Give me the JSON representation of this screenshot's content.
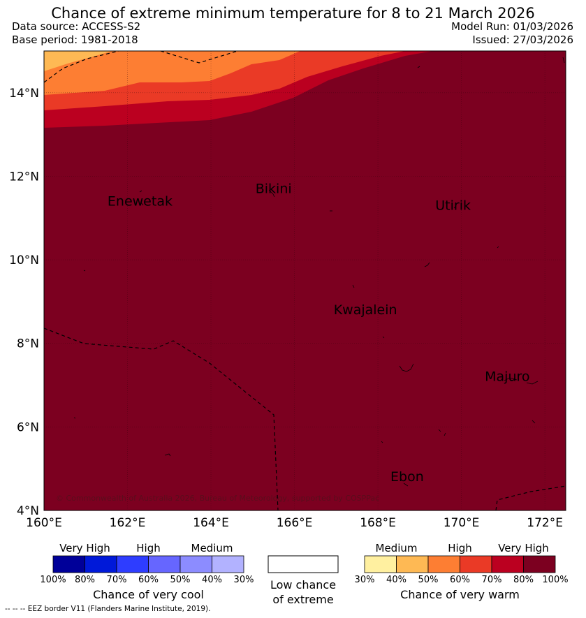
{
  "title": "Chance of extreme minimum temperature for 8 to 21 March 2026",
  "data_source": "Data source: ACCESS-S2",
  "base_period": "Base period: 1981-2018",
  "model_run": "Model Run: 01/03/2026",
  "issued": "Issued: 27/03/2026",
  "copyright": "© Commonwealth of Australia 2026, Bureau of Meteorology, supported by COSPPac",
  "map": {
    "lon_range": [
      160,
      172.5
    ],
    "lat_range": [
      4,
      15
    ],
    "x_ticks": [
      "160°E",
      "162°E",
      "164°E",
      "166°E",
      "168°E",
      "170°E",
      "172°E"
    ],
    "y_ticks": [
      "4°N",
      "6°N",
      "8°N",
      "10°N",
      "12°N",
      "14°N"
    ],
    "places": [
      {
        "name": "Enewetak",
        "lon": 162.3,
        "lat": 11.3
      },
      {
        "name": "Bikini",
        "lon": 165.5,
        "lat": 11.6
      },
      {
        "name": "Utirik",
        "lon": 169.8,
        "lat": 11.2
      },
      {
        "name": "Kwajalein",
        "lon": 167.7,
        "lat": 8.7
      },
      {
        "name": "Majuro",
        "lon": 171.1,
        "lat": 7.1
      },
      {
        "name": "Ebon",
        "lon": 168.7,
        "lat": 4.7
      }
    ],
    "dominant_category": "80–100% chance of very warm",
    "colors": {
      "bg_100": "#7c0020",
      "c70_80": "#bb0020",
      "c60_70": "#ea3a26",
      "c50_60": "#fd7e33",
      "c40_50": "#feb954"
    }
  },
  "legend": {
    "cool": {
      "headers": [
        "Very High",
        "High",
        "Medium"
      ],
      "ticks": [
        "100%",
        "80%",
        "70%",
        "60%",
        "50%",
        "40%",
        "30%"
      ],
      "colors": [
        "#000099",
        "#0019d9",
        "#2e3dff",
        "#6666ff",
        "#8c8cff",
        "#b2b2ff"
      ],
      "label": "Chance of very cool"
    },
    "low": {
      "label_line1": "Low chance",
      "label_line2": "of extreme"
    },
    "warm": {
      "headers": [
        "Medium",
        "High",
        "Very High"
      ],
      "ticks": [
        "30%",
        "40%",
        "50%",
        "60%",
        "70%",
        "80%",
        "100%"
      ],
      "colors": [
        "#fff0a0",
        "#feb954",
        "#fd7e33",
        "#ea3a26",
        "#bb0020",
        "#7c0020"
      ],
      "label": "Chance of very warm"
    },
    "eez_note": "--  --  -- EEZ border V11 (Flanders Marine Institute, 2019)."
  }
}
